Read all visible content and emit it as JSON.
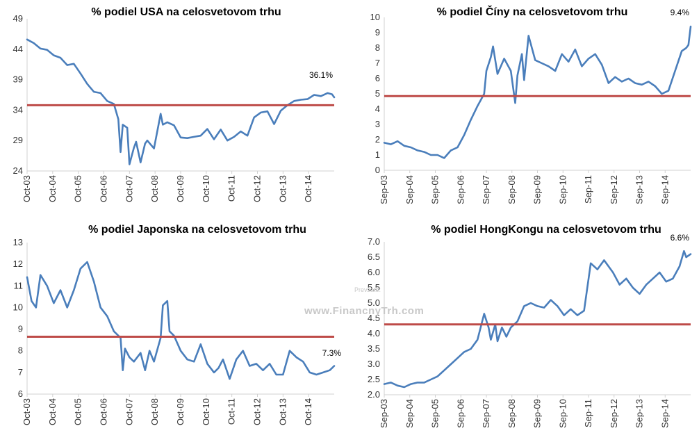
{
  "chart_data": [
    {
      "type": "line",
      "title": "% podiel USA na celosvetovom trhu",
      "ylim": [
        24,
        49
      ],
      "yticks": [
        "24",
        "29",
        "34",
        "39",
        "44",
        "49"
      ],
      "xticks": [
        "Oct-03",
        "Oct-04",
        "Oct-05",
        "Oct-06",
        "Oct-07",
        "Oct-08",
        "Oct-09",
        "Oct-10",
        "Oct-11",
        "Oct-12",
        "Oct-13",
        "Oct-14"
      ],
      "x_range": [
        0,
        138
      ],
      "reference_line": 34.8,
      "annotation": "36.1%",
      "colors": {
        "series": "#4a7ebb",
        "reference": "#be4b48"
      },
      "series": [
        {
          "x": [
            0,
            3,
            6,
            9,
            12,
            15,
            18,
            21,
            24,
            27,
            30,
            33,
            36,
            39,
            41,
            42,
            43,
            45,
            46,
            48,
            49,
            51,
            53,
            54,
            57,
            60,
            61,
            63,
            66,
            69,
            72,
            75,
            78,
            81,
            84,
            87,
            90,
            93,
            96,
            99,
            102,
            105,
            108,
            111,
            114,
            117,
            120,
            123,
            126,
            129,
            132,
            135,
            137,
            138
          ],
          "values": [
            45.6,
            45.0,
            44.1,
            43.9,
            43.0,
            42.6,
            41.4,
            41.6,
            40.0,
            38.3,
            37.0,
            36.8,
            35.5,
            35.0,
            32.5,
            27.1,
            31.6,
            31.1,
            25.1,
            27.8,
            28.8,
            25.4,
            28.5,
            29.0,
            27.7,
            33.4,
            31.6,
            32.0,
            31.5,
            29.5,
            29.4,
            29.6,
            29.8,
            30.9,
            29.2,
            30.8,
            29.0,
            29.6,
            30.5,
            29.8,
            32.8,
            33.6,
            33.8,
            31.7,
            33.9,
            34.8,
            35.5,
            35.7,
            35.8,
            36.5,
            36.3,
            36.8,
            36.6,
            36.1
          ]
        }
      ]
    },
    {
      "type": "line",
      "title": "% podiel Číny na celosvetovom trhu",
      "ylim": [
        0,
        10
      ],
      "yticks": [
        "0",
        "1",
        "2",
        "3",
        "4",
        "5",
        "6",
        "7",
        "8",
        "9",
        "10"
      ],
      "xticks": [
        "Sep-03",
        "Sep-04",
        "Sep-05",
        "Sep-06",
        "Sep-07",
        "Sep-08",
        "Sep-09",
        "Sep-10",
        "Sep-11",
        "Sep-12",
        "Sep-13",
        "Sep-14"
      ],
      "x_range": [
        0,
        138
      ],
      "reference_line": 4.85,
      "annotation": "9.4%",
      "colors": {
        "series": "#4a7ebb",
        "reference": "#be4b48"
      },
      "series": [
        {
          "x": [
            0,
            3,
            6,
            9,
            12,
            15,
            18,
            21,
            24,
            27,
            30,
            33,
            36,
            39,
            42,
            45,
            46,
            48,
            49,
            51,
            54,
            57,
            59,
            60,
            62,
            63,
            65,
            68,
            71,
            74,
            77,
            80,
            83,
            86,
            89,
            92,
            95,
            98,
            101,
            104,
            107,
            110,
            113,
            116,
            119,
            122,
            125,
            128,
            131,
            134,
            136,
            137,
            138
          ],
          "values": [
            1.8,
            1.7,
            1.9,
            1.6,
            1.5,
            1.3,
            1.2,
            1.0,
            1.0,
            0.8,
            1.3,
            1.5,
            2.3,
            3.3,
            4.2,
            5.0,
            6.5,
            7.4,
            8.1,
            6.3,
            7.3,
            6.5,
            4.4,
            6.2,
            7.6,
            5.9,
            8.8,
            7.2,
            7.0,
            6.8,
            6.5,
            7.6,
            7.1,
            7.9,
            6.8,
            7.3,
            7.6,
            6.9,
            5.7,
            6.1,
            5.8,
            6.0,
            5.7,
            5.6,
            5.8,
            5.5,
            5.0,
            5.2,
            6.5,
            7.8,
            8.0,
            8.2,
            9.4
          ]
        }
      ]
    },
    {
      "type": "line",
      "title": "% podiel Japonska na celosvetovom trhu",
      "ylim": [
        6,
        13
      ],
      "yticks": [
        "6",
        "7",
        "8",
        "9",
        "10",
        "11",
        "12",
        "13"
      ],
      "xticks": [
        "Oct-03",
        "Oct-04",
        "Oct-05",
        "Oct-06",
        "Oct-07",
        "Oct-08",
        "Oct-09",
        "Oct-10",
        "Oct-11",
        "Oct-12",
        "Oct-13",
        "Oct-14"
      ],
      "x_range": [
        0,
        138
      ],
      "reference_line": 8.65,
      "annotation": "7.3%",
      "colors": {
        "series": "#4a7ebb",
        "reference": "#be4b48"
      },
      "series": [
        {
          "x": [
            0,
            2,
            4,
            6,
            9,
            12,
            15,
            18,
            21,
            24,
            27,
            30,
            33,
            36,
            39,
            42,
            43,
            44,
            46,
            48,
            51,
            53,
            55,
            57,
            60,
            61,
            63,
            64,
            66,
            69,
            72,
            75,
            78,
            81,
            84,
            86,
            88,
            91,
            94,
            97,
            100,
            103,
            106,
            109,
            112,
            115,
            118,
            121,
            124,
            127,
            130,
            133,
            136,
            138
          ],
          "values": [
            11.4,
            10.3,
            10.0,
            11.5,
            11.0,
            10.2,
            10.8,
            10.0,
            10.8,
            11.8,
            12.1,
            11.2,
            10.0,
            9.6,
            8.9,
            8.6,
            7.1,
            8.1,
            7.7,
            7.5,
            7.9,
            7.1,
            8.0,
            7.5,
            8.6,
            10.1,
            10.3,
            8.9,
            8.7,
            8.0,
            7.6,
            7.5,
            8.3,
            7.4,
            7.0,
            7.2,
            7.6,
            6.7,
            7.6,
            8.0,
            7.3,
            7.4,
            7.1,
            7.4,
            6.9,
            6.9,
            8.0,
            7.7,
            7.5,
            7.0,
            6.9,
            7.0,
            7.1,
            7.3
          ]
        }
      ]
    },
    {
      "type": "line",
      "title": "% podiel HongKongu na celosvetovom trhu",
      "ylim": [
        2.0,
        7.0
      ],
      "yticks": [
        "2.0",
        "2.5",
        "3.0",
        "3.5",
        "4.0",
        "4.5",
        "5.0",
        "5.5",
        "6.0",
        "6.5",
        "7.0"
      ],
      "xticks": [
        "Sep-03",
        "Sep-04",
        "Sep-05",
        "Sep-06",
        "Sep-07",
        "Sep-08",
        "Sep-09",
        "Sep-10",
        "Sep-11",
        "Sep-12",
        "Sep-13",
        "Sep-14"
      ],
      "x_range": [
        0,
        138
      ],
      "reference_line": 4.3,
      "annotation": "6.6%",
      "colors": {
        "series": "#4a7ebb",
        "reference": "#be4b48"
      },
      "series": [
        {
          "x": [
            0,
            3,
            6,
            9,
            12,
            15,
            18,
            21,
            24,
            27,
            30,
            33,
            36,
            39,
            42,
            45,
            47,
            48,
            50,
            51,
            53,
            55,
            57,
            60,
            63,
            66,
            69,
            72,
            75,
            78,
            81,
            84,
            87,
            90,
            93,
            96,
            99,
            100,
            103,
            106,
            109,
            112,
            115,
            118,
            121,
            124,
            127,
            130,
            133,
            135,
            136,
            138
          ],
          "values": [
            2.35,
            2.4,
            2.3,
            2.25,
            2.35,
            2.4,
            2.4,
            2.5,
            2.6,
            2.8,
            3.0,
            3.2,
            3.4,
            3.5,
            3.8,
            4.65,
            4.2,
            3.8,
            4.3,
            3.75,
            4.2,
            3.9,
            4.2,
            4.4,
            4.9,
            5.0,
            4.9,
            4.85,
            5.1,
            4.9,
            4.6,
            4.8,
            4.6,
            4.75,
            6.3,
            6.1,
            6.4,
            6.3,
            6.0,
            5.6,
            5.8,
            5.5,
            5.3,
            5.6,
            5.8,
            6.0,
            5.7,
            5.8,
            6.2,
            6.7,
            6.5,
            6.6
          ]
        }
      ]
    }
  ],
  "watermark": {
    "main": "www.FinancnyTrh.com",
    "sub": "Prevzaté:"
  }
}
